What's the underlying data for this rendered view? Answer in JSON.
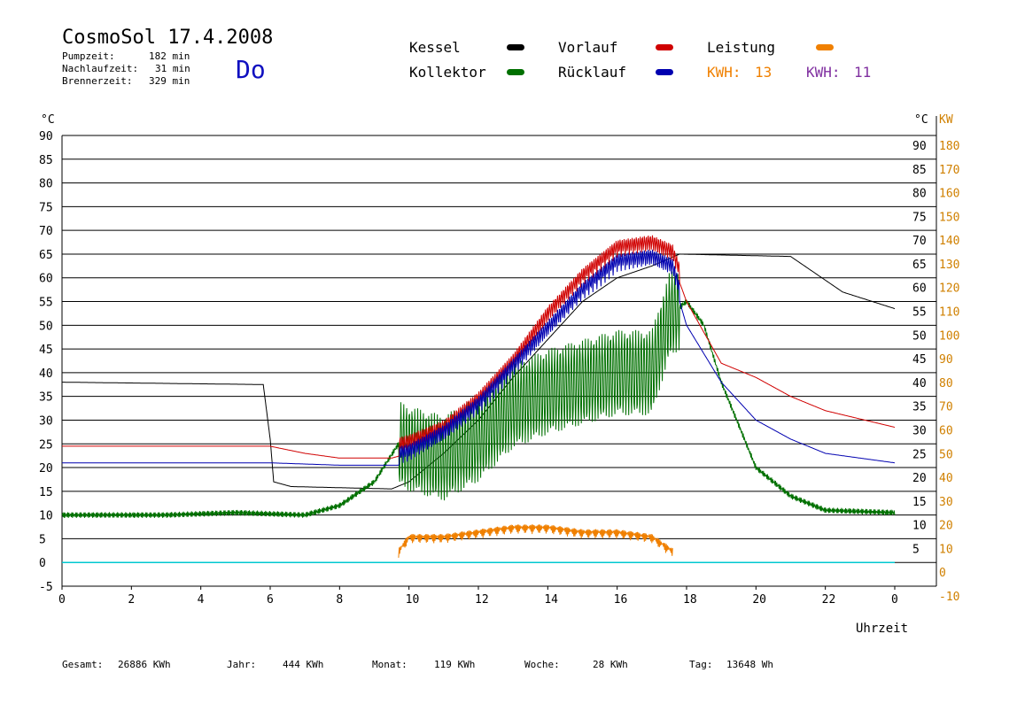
{
  "header": {
    "title": "CosmoSol 17.4.2008",
    "day": "Do",
    "stats": [
      {
        "label": "Pumpzeit:",
        "value": "182 min"
      },
      {
        "label": "Nachlaufzeit:",
        "value": "31 min"
      },
      {
        "label": "Brennerzeit:",
        "value": "329 min"
      }
    ]
  },
  "legend": {
    "kessel": "Kessel",
    "kollektor": "Kollektor",
    "vorlauf": "Vorlauf",
    "ruecklauf": "Rücklauf",
    "leistung": "Leistung",
    "kwh1_label": "KWH:",
    "kwh1_value": "13",
    "kwh2_label": "KWH:",
    "kwh2_value": "11"
  },
  "colors": {
    "kessel": "#000000",
    "kollektor": "#007000",
    "vorlauf": "#d00000",
    "ruecklauf": "#0000b0",
    "leistung": "#f08000",
    "purple": "#8030a0",
    "cyan": "#00c8d0"
  },
  "footer": {
    "gesamt_label": "Gesamt:",
    "gesamt_value": "26886 KWh",
    "jahr_label": "Jahr:",
    "jahr_value": "444 KWh",
    "monat_label": "Monat:",
    "monat_value": "119 KWh",
    "woche_label": "Woche:",
    "woche_value": "28 KWh",
    "tag_label": "Tag:",
    "tag_value": "13648 Wh"
  },
  "chart_data": {
    "type": "line",
    "xlabel": "Uhrzeit",
    "ylabel_left": "°C",
    "ylabel_right_temp": "°C",
    "ylabel_right_power": "KW",
    "xlim": [
      0,
      24
    ],
    "ylim": [
      -5,
      90
    ],
    "x_ticks": [
      "0",
      "2",
      "4",
      "6",
      "8",
      "10",
      "12",
      "14",
      "16",
      "18",
      "20",
      "22",
      "0"
    ],
    "y_ticks_left": [
      "90",
      "85",
      "80",
      "75",
      "70",
      "65",
      "60",
      "55",
      "50",
      "45",
      "40",
      "35",
      "30",
      "25",
      "20",
      "15",
      "10",
      "5",
      "0",
      "-5"
    ],
    "y_ticks_right_temp": [
      "90",
      "85",
      "80",
      "75",
      "70",
      "65",
      "60",
      "55",
      "50",
      "45",
      "40",
      "35",
      "30",
      "25",
      "20",
      "15",
      "10",
      "5"
    ],
    "y_ticks_right_power": [
      "180",
      "170",
      "160",
      "150",
      "140",
      "130",
      "120",
      "110",
      "100",
      "90",
      "80",
      "70",
      "60",
      "50",
      "40",
      "30",
      "20",
      "10",
      "0",
      "-10"
    ],
    "grid": true,
    "series": [
      {
        "name": "Kessel",
        "points": [
          [
            0,
            38
          ],
          [
            5.8,
            37.5
          ],
          [
            6.0,
            26
          ],
          [
            6.1,
            17
          ],
          [
            6.6,
            16
          ],
          [
            9.5,
            15.5
          ],
          [
            10,
            17
          ],
          [
            11,
            23
          ],
          [
            12,
            30
          ],
          [
            13,
            39
          ],
          [
            14,
            47
          ],
          [
            15,
            55
          ],
          [
            16,
            60
          ],
          [
            17,
            62.5
          ],
          [
            17.8,
            65
          ],
          [
            21,
            64.5
          ],
          [
            21.5,
            62
          ],
          [
            22.5,
            57
          ],
          [
            24,
            53.5
          ]
        ]
      },
      {
        "name": "Kollektor",
        "points": [
          [
            0,
            10
          ],
          [
            3,
            10
          ],
          [
            5,
            10.5
          ],
          [
            7,
            10
          ],
          [
            8,
            12
          ],
          [
            9,
            17
          ],
          [
            9.7,
            25
          ],
          [
            10,
            24
          ],
          [
            11,
            22
          ],
          [
            12,
            26
          ],
          [
            13,
            33
          ],
          [
            14,
            36
          ],
          [
            15,
            38
          ],
          [
            16,
            40
          ],
          [
            17,
            40
          ],
          [
            17.5,
            52
          ],
          [
            18,
            55
          ],
          [
            18.5,
            50
          ],
          [
            19,
            38
          ],
          [
            20,
            20
          ],
          [
            21,
            14
          ],
          [
            22,
            11
          ],
          [
            24,
            10.5
          ]
        ]
      },
      {
        "name": "Vorlauf",
        "points": [
          [
            0,
            24.5
          ],
          [
            6,
            24.5
          ],
          [
            7,
            23
          ],
          [
            8,
            22
          ],
          [
            9.5,
            22
          ],
          [
            10,
            23
          ],
          [
            11,
            26
          ],
          [
            12,
            32
          ],
          [
            13,
            40
          ],
          [
            14,
            50
          ],
          [
            15,
            58
          ],
          [
            16,
            64
          ],
          [
            17,
            65
          ],
          [
            17.6,
            63
          ],
          [
            18,
            55
          ],
          [
            19,
            42
          ],
          [
            20,
            39
          ],
          [
            21,
            35
          ],
          [
            22,
            32
          ],
          [
            24,
            28.5
          ]
        ]
      },
      {
        "name": "Rücklauf",
        "points": [
          [
            0,
            21
          ],
          [
            6,
            21
          ],
          [
            8,
            20.5
          ],
          [
            9.7,
            20.5
          ],
          [
            10,
            21
          ],
          [
            11,
            25
          ],
          [
            12,
            31
          ],
          [
            13,
            39
          ],
          [
            14,
            47
          ],
          [
            15,
            55
          ],
          [
            16,
            61
          ],
          [
            17,
            62
          ],
          [
            17.6,
            60
          ],
          [
            18,
            50
          ],
          [
            19,
            38
          ],
          [
            20,
            30
          ],
          [
            21,
            26
          ],
          [
            22,
            23
          ],
          [
            24,
            21
          ]
        ]
      },
      {
        "name": "Leistung",
        "points": [
          [
            9.7,
            1
          ],
          [
            10,
            4
          ],
          [
            11,
            4
          ],
          [
            12,
            5
          ],
          [
            13,
            6
          ],
          [
            14,
            6
          ],
          [
            15,
            5
          ],
          [
            16,
            5
          ],
          [
            17,
            4
          ],
          [
            17.6,
            1
          ]
        ]
      }
    ]
  }
}
